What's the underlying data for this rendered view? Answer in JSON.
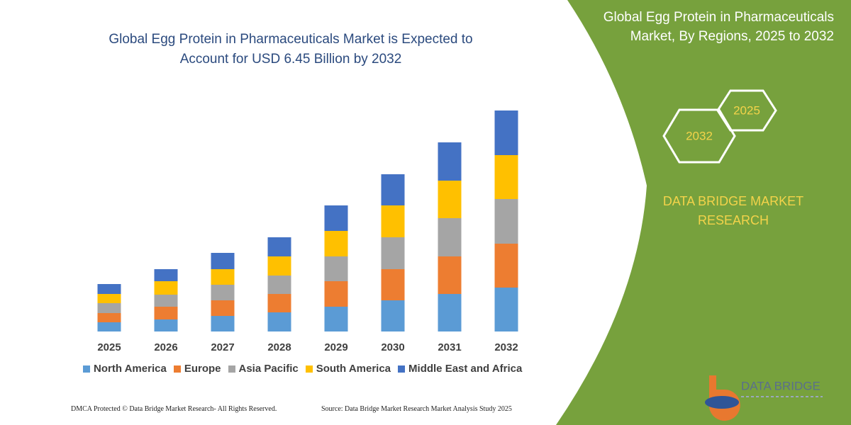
{
  "chart_data": {
    "type": "bar",
    "stacked": true,
    "title": "Global Egg Protein in Pharmaceuticals Market is Expected to Account for USD 6.45 Billion by 2032",
    "categories": [
      "2025",
      "2026",
      "2027",
      "2028",
      "2029",
      "2030",
      "2031",
      "2032"
    ],
    "series": [
      {
        "name": "North America",
        "color": "#5b9bd5",
        "values": [
          13,
          17,
          22,
          27,
          35,
          44,
          53,
          62
        ]
      },
      {
        "name": "Europe",
        "color": "#ed7d31",
        "values": [
          13,
          18,
          22,
          26,
          36,
          44,
          53,
          62
        ]
      },
      {
        "name": "Asia Pacific",
        "color": "#a5a5a5",
        "values": [
          14,
          17,
          22,
          26,
          35,
          45,
          54,
          63
        ]
      },
      {
        "name": "South America",
        "color": "#ffc000",
        "values": [
          13,
          19,
          22,
          27,
          36,
          45,
          53,
          62
        ]
      },
      {
        "name": "Middle East and Africa",
        "color": "#4472c4",
        "values": [
          14,
          17,
          23,
          27,
          36,
          44,
          54,
          63
        ]
      }
    ],
    "ylim": [
      0,
      320
    ]
  },
  "panel": {
    "title": "Global Egg Protein in Pharmaceuticals Market, By Regions, 2025 to 2032",
    "badges": [
      "2025",
      "2032"
    ],
    "brand": "DATA BRIDGE MARKET RESEARCH"
  },
  "logo": {
    "text": "DATA BRIDGE"
  },
  "footer": {
    "copyright": "DMCA Protected © Data Bridge Market Research-  All Rights Reserved.",
    "source": "Source: Data Bridge Market Research  Market Analysis Study 2025"
  }
}
